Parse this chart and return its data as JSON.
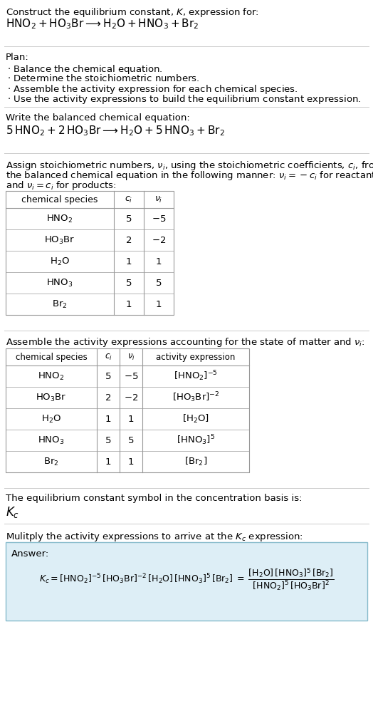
{
  "bg_color": "#ffffff",
  "text_color": "#000000",
  "title_line1": "Construct the equilibrium constant, $K$, expression for:",
  "reaction_unbalanced": "$\\mathrm{HNO_2 + HO_3Br \\longrightarrow H_2O + HNO_3 + Br_2}$",
  "plan_header": "Plan:",
  "plan_items": [
    "$\\cdot$ Balance the chemical equation.",
    "$\\cdot$ Determine the stoichiometric numbers.",
    "$\\cdot$ Assemble the activity expression for each chemical species.",
    "$\\cdot$ Use the activity expressions to build the equilibrium constant expression."
  ],
  "balanced_header": "Write the balanced chemical equation:",
  "reaction_balanced": "$\\mathrm{5\\,HNO_2 + 2\\,HO_3Br \\longrightarrow H_2O + 5\\,HNO_3 + Br_2}$",
  "stoich_text1": "Assign stoichiometric numbers, $\\nu_i$, using the stoichiometric coefficients, $c_i$, from",
  "stoich_text2": "the balanced chemical equation in the following manner: $\\nu_i = -c_i$ for reactants",
  "stoich_text3": "and $\\nu_i = c_i$ for products:",
  "table1_headers": [
    "chemical species",
    "$c_i$",
    "$\\nu_i$"
  ],
  "table1_rows": [
    [
      "$\\mathrm{HNO_2}$",
      "5",
      "$-5$"
    ],
    [
      "$\\mathrm{HO_3Br}$",
      "2",
      "$-2$"
    ],
    [
      "$\\mathrm{H_2O}$",
      "1",
      "1"
    ],
    [
      "$\\mathrm{HNO_3}$",
      "5",
      "5"
    ],
    [
      "$\\mathrm{Br_2}$",
      "1",
      "1"
    ]
  ],
  "activity_header": "Assemble the activity expressions accounting for the state of matter and $\\nu_i$:",
  "table2_headers": [
    "chemical species",
    "$c_i$",
    "$\\nu_i$",
    "activity expression"
  ],
  "table2_rows": [
    [
      "$\\mathrm{HNO_2}$",
      "5",
      "$-5$",
      "$[\\mathrm{HNO_2}]^{-5}$"
    ],
    [
      "$\\mathrm{HO_3Br}$",
      "2",
      "$-2$",
      "$[\\mathrm{HO_3Br}]^{-2}$"
    ],
    [
      "$\\mathrm{H_2O}$",
      "1",
      "1",
      "$[\\mathrm{H_2O}]$"
    ],
    [
      "$\\mathrm{HNO_3}$",
      "5",
      "5",
      "$[\\mathrm{HNO_3}]^5$"
    ],
    [
      "$\\mathrm{Br_2}$",
      "1",
      "1",
      "$[\\mathrm{Br_2}]$"
    ]
  ],
  "kc_symbol_header": "The equilibrium constant symbol in the concentration basis is:",
  "kc_symbol": "$K_c$",
  "multiply_header": "Mulitply the activity expressions to arrive at the $K_c$ expression:",
  "answer_box_color": "#ddeef6",
  "answer_label": "Answer:",
  "answer_lhs": "$K_c = [\\mathrm{HNO_2}]^{-5}\\,[\\mathrm{HO_3Br}]^{-2}\\,[\\mathrm{H_2O}]\\,[\\mathrm{HNO_3}]^5\\,[\\mathrm{Br_2}] = $",
  "answer_rhs_num": "$[\\mathrm{H_2O}]\\,[\\mathrm{HNO_3}]^5\\,[\\mathrm{Br_2}]$",
  "answer_rhs_den": "$[\\mathrm{HNO_2}]^5\\,[\\mathrm{HO_3Br}]^2$",
  "divider_color": "#cccccc",
  "table_border_color": "#999999"
}
